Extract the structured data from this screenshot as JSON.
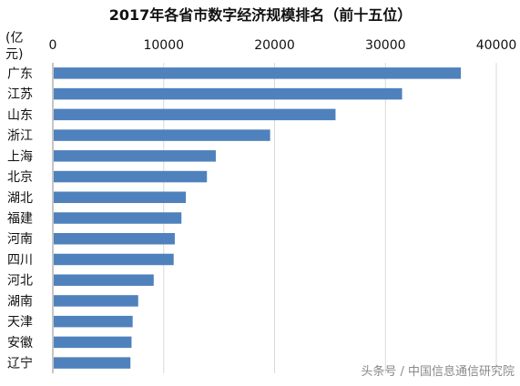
{
  "chart_data": {
    "type": "bar",
    "orientation": "horizontal",
    "title": "2017年各省市数字经济规模排名（前十五位）",
    "unit_label_line1": "(亿",
    "unit_label_line2": "元)",
    "xlim": [
      0,
      40000
    ],
    "x_ticks": [
      0,
      10000,
      20000,
      30000,
      40000
    ],
    "x_tick_labels": [
      "0",
      "10000",
      "20000",
      "30000",
      "40000"
    ],
    "grid": true,
    "bar_color": "#4f81bd",
    "categories": [
      "广东",
      "江苏",
      "山东",
      "浙江",
      "上海",
      "北京",
      "湖北",
      "福建",
      "河南",
      "四川",
      "河北",
      "湖南",
      "天津",
      "安徽",
      "辽宁"
    ],
    "values": [
      36800,
      31500,
      25500,
      19600,
      14700,
      13900,
      12000,
      11600,
      11000,
      10900,
      9100,
      7700,
      7200,
      7100,
      7000
    ]
  },
  "watermark": "头条号 / 中国信息通信研究院"
}
